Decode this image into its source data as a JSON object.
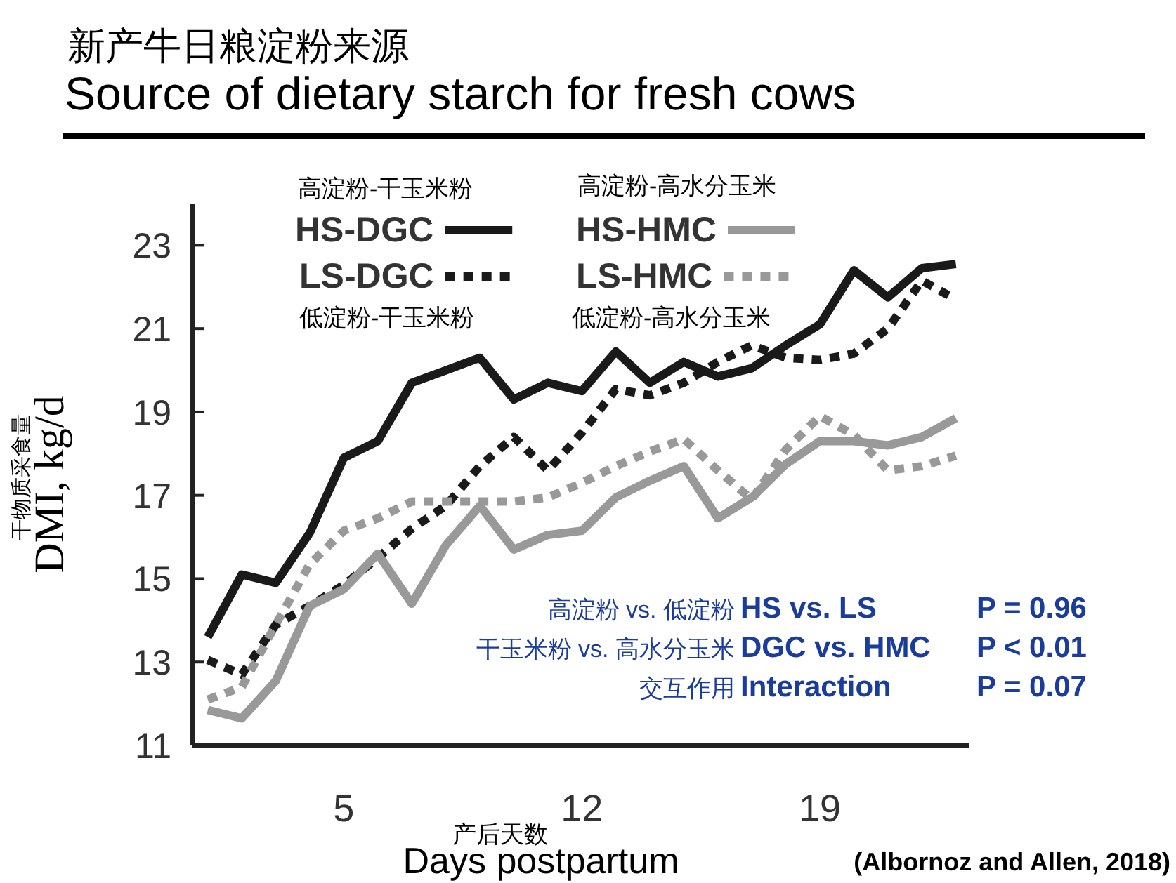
{
  "chart_data": {
    "type": "line",
    "title": "新产牛日粮淀粉来源",
    "subtitle": "Source of dietary starch for fresh cows",
    "xlabel": "Days postpartum",
    "ylabel": "DMI, kg/d",
    "x": [
      1,
      2,
      3,
      4,
      5,
      6,
      7,
      8,
      9,
      10,
      11,
      12,
      13,
      14,
      15,
      16,
      17,
      18,
      19,
      20,
      21,
      22,
      23
    ],
    "xlim": [
      0.55,
      23.4
    ],
    "xticks": [
      5,
      12,
      19
    ],
    "ylim": [
      11,
      24
    ],
    "yticks": [
      11,
      13,
      15,
      17,
      19,
      21,
      23
    ],
    "legend": "top",
    "series": [
      {
        "name": "HS-DGC",
        "color": "#1a1a1a",
        "line_style": "solid",
        "values": [
          13.6,
          15.1,
          14.9,
          16.1,
          17.9,
          18.3,
          19.7,
          20.0,
          20.3,
          19.3,
          19.7,
          19.5,
          20.45,
          19.7,
          20.2,
          19.85,
          20.05,
          20.6,
          21.1,
          22.4,
          21.75,
          22.45,
          22.55
        ]
      },
      {
        "name": "LS-DGC",
        "color": "#1a1a1a",
        "line_style": "dotted",
        "values": [
          13.05,
          12.7,
          13.9,
          14.35,
          14.85,
          15.5,
          16.2,
          16.75,
          17.7,
          18.4,
          17.6,
          18.5,
          19.55,
          19.4,
          19.7,
          20.2,
          20.6,
          20.3,
          20.25,
          20.4,
          21.0,
          22.15,
          21.7
        ]
      },
      {
        "name": "HS-HMC",
        "color": "#999999",
        "line_style": "solid",
        "values": [
          11.85,
          11.65,
          12.55,
          14.35,
          14.75,
          15.6,
          14.4,
          15.8,
          16.75,
          15.7,
          16.05,
          16.15,
          16.95,
          17.35,
          17.7,
          16.45,
          16.95,
          17.75,
          18.3,
          18.3,
          18.2,
          18.4,
          18.85
        ]
      },
      {
        "name": "LS-HMC",
        "color": "#999999",
        "line_style": "dotted",
        "values": [
          12.1,
          12.4,
          13.9,
          15.35,
          16.15,
          16.45,
          16.85,
          16.85,
          16.85,
          16.85,
          16.95,
          17.3,
          17.7,
          18.05,
          18.35,
          17.6,
          16.9,
          18.1,
          18.9,
          18.45,
          17.6,
          17.7,
          17.95
        ]
      }
    ],
    "annotations": [
      "高淀粉-干玉米粉",
      "低淀粉-干玉米粉",
      "高淀粉-高水分玉米",
      "低淀粉-高水分玉米",
      "高淀粉 vs. 低淀粉",
      "HS vs. LS",
      "P = 0.96",
      "干玉米粉 vs. 高水分玉米",
      "DGC vs. HMC",
      "P < 0.01",
      "交互作用",
      "Interaction",
      "P = 0.07",
      "干物质采食量",
      "产后天数",
      "(Albornoz and Allen, 2018)"
    ]
  }
}
